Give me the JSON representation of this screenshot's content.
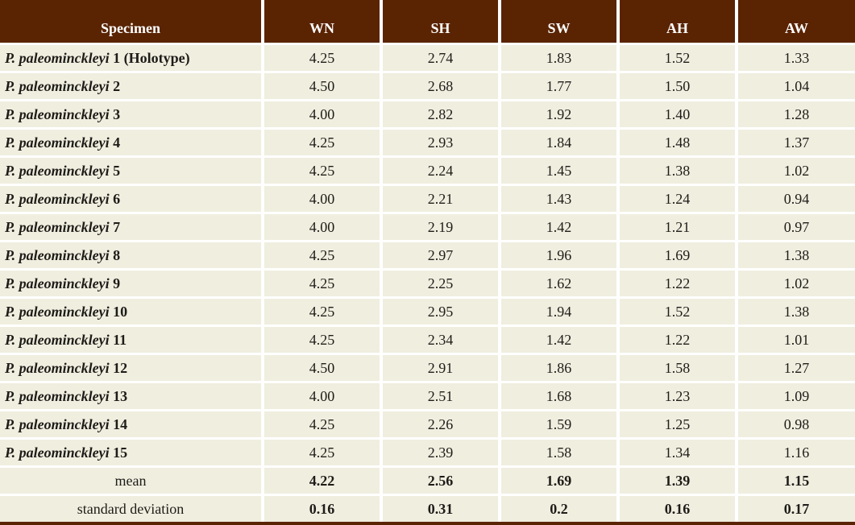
{
  "colors": {
    "header_bg": "#5A2402",
    "cell_bg": "#F0EEDF",
    "separator": "#FFFFFF",
    "header_text": "#FFFFFF",
    "body_text": "#1E1C18"
  },
  "table": {
    "headers": [
      "Specimen",
      "WN",
      "SH",
      "SW",
      "AH",
      "AW"
    ],
    "rows": [
      {
        "name": "P. paleominckleyi",
        "suffix": "1 (Holotype)",
        "values": [
          "4.25",
          "2.74",
          "1.83",
          "1.52",
          "1.33"
        ]
      },
      {
        "name": "P. paleominckleyi",
        "suffix": "2",
        "values": [
          "4.50",
          "2.68",
          "1.77",
          "1.50",
          "1.04"
        ]
      },
      {
        "name": "P. paleominckleyi",
        "suffix": "3",
        "values": [
          "4.00",
          "2.82",
          "1.92",
          "1.40",
          "1.28"
        ]
      },
      {
        "name": "P. paleominckleyi",
        "suffix": "4",
        "values": [
          "4.25",
          "2.93",
          "1.84",
          "1.48",
          "1.37"
        ]
      },
      {
        "name": "P. paleominckleyi",
        "suffix": "5",
        "values": [
          "4.25",
          "2.24",
          "1.45",
          "1.38",
          "1.02"
        ]
      },
      {
        "name": "P. paleominckleyi",
        "suffix": "6",
        "values": [
          "4.00",
          "2.21",
          "1.43",
          "1.24",
          "0.94"
        ]
      },
      {
        "name": "P. paleominckleyi",
        "suffix": "7",
        "values": [
          "4.00",
          "2.19",
          "1.42",
          "1.21",
          "0.97"
        ]
      },
      {
        "name": "P. paleominckleyi",
        "suffix": "8",
        "values": [
          "4.25",
          "2.97",
          "1.96",
          "1.69",
          "1.38"
        ]
      },
      {
        "name": "P. paleominckleyi",
        "suffix": "9",
        "values": [
          "4.25",
          "2.25",
          "1.62",
          "1.22",
          "1.02"
        ]
      },
      {
        "name": "P. paleominckleyi",
        "suffix": "10",
        "values": [
          "4.25",
          "2.95",
          "1.94",
          "1.52",
          "1.38"
        ]
      },
      {
        "name": "P. paleominckleyi",
        "suffix": "11",
        "values": [
          "4.25",
          "2.34",
          "1.42",
          "1.22",
          "1.01"
        ]
      },
      {
        "name": "P. paleominckleyi",
        "suffix": "12",
        "values": [
          "4.50",
          "2.91",
          "1.86",
          "1.58",
          "1.27"
        ]
      },
      {
        "name": "P. paleominckleyi",
        "suffix": "13",
        "values": [
          "4.00",
          "2.51",
          "1.68",
          "1.23",
          "1.09"
        ]
      },
      {
        "name": "P. paleominckleyi",
        "suffix": "14",
        "values": [
          "4.25",
          "2.26",
          "1.59",
          "1.25",
          "0.98"
        ]
      },
      {
        "name": "P. paleominckleyi",
        "suffix": "15",
        "values": [
          "4.25",
          "2.39",
          "1.58",
          "1.34",
          "1.16"
        ]
      }
    ],
    "summary_rows": [
      {
        "label": "mean",
        "values": [
          "4.22",
          "2.56",
          "1.69",
          "1.39",
          "1.15"
        ]
      },
      {
        "label": "standard deviation",
        "values": [
          "0.16",
          "0.31",
          "0.2",
          "0.16",
          "0.17"
        ]
      }
    ]
  }
}
